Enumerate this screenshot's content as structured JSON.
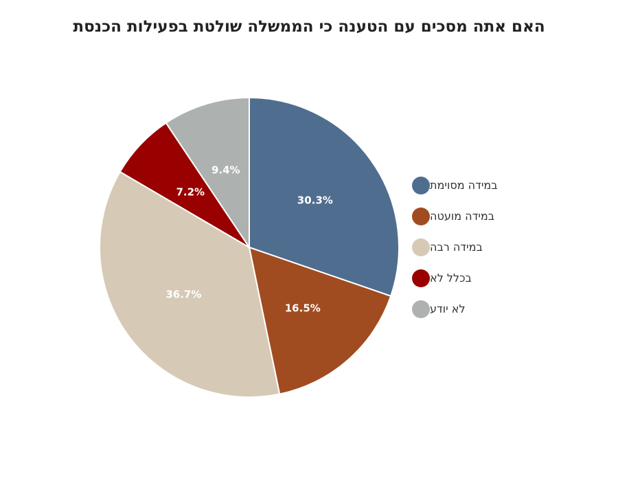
{
  "chart_data": {
    "type": "pie",
    "title": "האם אתה מסכים עם הטענה כי הממשלה שולטת בפעילות הכנסת",
    "legend_position": "right",
    "slices": [
      {
        "label": "במידה מסוימת",
        "value": 30.3,
        "display": "30.3%",
        "color": "#4f6d8f"
      },
      {
        "label": "במידה מועטה",
        "value": 16.5,
        "display": "16.5%",
        "color": "#a04c20"
      },
      {
        "label": "במידה רבה",
        "value": 36.7,
        "display": "36.7%",
        "color": "#d6cab6"
      },
      {
        "label": "בכלל לא",
        "value": 7.2,
        "display": "7.2%",
        "color": "#990000"
      },
      {
        "label": "לא יודע",
        "value": 9.4,
        "display": "9.4%",
        "color": "#adb2b1"
      }
    ]
  }
}
